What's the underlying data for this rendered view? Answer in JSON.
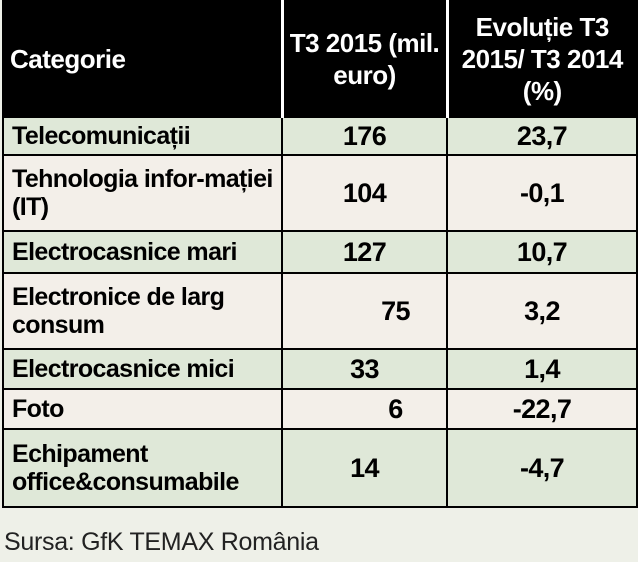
{
  "chart_data": {
    "type": "table",
    "columns": [
      "Categorie",
      "T3 2015 (mil. euro)",
      "Evoluție T3 2015/ T3 2014 (%)"
    ],
    "rows": [
      {
        "category": "Telecomunicații",
        "value": "176",
        "change": "23,7"
      },
      {
        "category": "Tehnologia infor-mației (IT)",
        "value": "104",
        "change": "-0,1"
      },
      {
        "category": "Electrocasnice mari",
        "value": "127",
        "change": "10,7"
      },
      {
        "category": "Electronice de larg consum",
        "value": "75",
        "change": "3,2"
      },
      {
        "category": "Electrocasnice mici",
        "value": "33",
        "change": "1,4"
      },
      {
        "category": "Foto",
        "value": "6",
        "change": "-22,7"
      },
      {
        "category": "Echipament office&consumabile",
        "value": "14",
        "change": "-4,7"
      }
    ],
    "source": "Sursa: GfK TEMAX România"
  },
  "colors": {
    "header_bg": "#000000",
    "row_green": "#dfe8d8",
    "row_beige": "#f3efe9"
  }
}
